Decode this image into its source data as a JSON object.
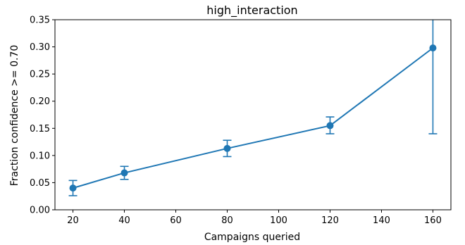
{
  "chart_data": {
    "type": "line",
    "title": "high_interaction",
    "xlabel": "Campaigns queried",
    "ylabel": "Fraction confidence >= 0.70",
    "xlim": [
      13,
      167
    ],
    "ylim": [
      0.0,
      0.35
    ],
    "xticks": [
      20,
      40,
      60,
      80,
      100,
      120,
      140,
      160
    ],
    "yticks": [
      0.0,
      0.05,
      0.1,
      0.15,
      0.2,
      0.25,
      0.3,
      0.35
    ],
    "ytick_labels": [
      "0.00",
      "0.05",
      "0.10",
      "0.15",
      "0.20",
      "0.25",
      "0.30",
      "0.35"
    ],
    "grid": false,
    "series": [
      {
        "color": "#1f77b4",
        "points": [
          {
            "x": 20,
            "y": 0.04,
            "err_low": 0.026,
            "err_high": 0.054
          },
          {
            "x": 40,
            "y": 0.068,
            "err_low": 0.056,
            "err_high": 0.08
          },
          {
            "x": 80,
            "y": 0.113,
            "err_low": 0.098,
            "err_high": 0.128
          },
          {
            "x": 120,
            "y": 0.155,
            "err_low": 0.14,
            "err_high": 0.171
          },
          {
            "x": 160,
            "y": 0.298,
            "err_low": 0.14,
            "err_high": 0.36
          }
        ]
      }
    ]
  }
}
